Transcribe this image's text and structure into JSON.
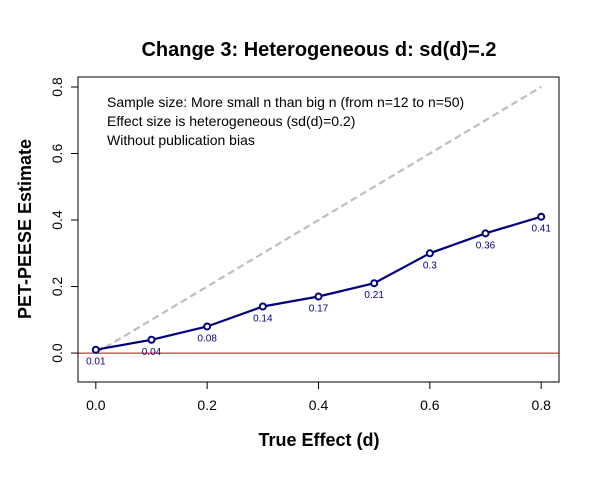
{
  "chart_data": {
    "type": "line",
    "title": "Change 3: Heterogeneous d: sd(d)=.2",
    "xlabel": "True Effect (d)",
    "ylabel": "PET-PEESE Estimate",
    "xlim": [
      -0.032,
      0.832
    ],
    "ylim": [
      -0.087,
      0.83
    ],
    "x_ticks": [
      "0.0",
      "0.2",
      "0.4",
      "0.6",
      "0.8"
    ],
    "y_ticks": [
      "0.0",
      "0.2",
      "0.4",
      "0.6",
      "0.8"
    ],
    "annotations": [
      "Sample size: More small n than big n (from n=12 to n=50)",
      "Effect size is heterogeneous (sd(d)=0.2)",
      "Without publication bias"
    ],
    "series": [
      {
        "x": [
          0,
          0.1,
          0.2,
          0.3,
          0.4,
          0.5,
          0.6,
          0.7,
          0.8
        ],
        "values": [
          0.01,
          0.04,
          0.08,
          0.14,
          0.17,
          0.21,
          0.3,
          0.36,
          0.41
        ],
        "labels": [
          "0.01",
          "0.04",
          "0.08",
          "0.14",
          "0.17",
          "0.21",
          "0.3",
          "0.36",
          "0.41"
        ],
        "color": "#00007f"
      }
    ],
    "reference_lines": [
      {
        "type": "diagonal",
        "slope": 1,
        "intercept": 0,
        "color": "#bebebe",
        "style": "dashed"
      },
      {
        "type": "horizontal",
        "y": 0,
        "color": "#cc0000",
        "style": "solid"
      }
    ],
    "grid": false,
    "legend": "none"
  }
}
